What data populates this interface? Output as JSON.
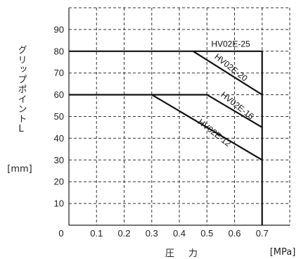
{
  "chart_data": {
    "type": "line",
    "title": "",
    "xlabel": "圧 力",
    "xunit": "[MPa]",
    "ylabel": "グリップポイントL",
    "yunit": "[mm]",
    "origin_label": "0",
    "xlim": [
      0,
      0.8
    ],
    "ylim": [
      0,
      100
    ],
    "grid": true,
    "x_ticks": [
      {
        "value": 0.1,
        "label": "0.1"
      },
      {
        "value": 0.2,
        "label": "0.2"
      },
      {
        "value": 0.3,
        "label": "0.3"
      },
      {
        "value": 0.4,
        "label": "0.4"
      },
      {
        "value": 0.5,
        "label": "0.5"
      },
      {
        "value": 0.6,
        "label": "0.6"
      },
      {
        "value": 0.7,
        "label": "0.7"
      }
    ],
    "y_ticks": [
      {
        "value": 10,
        "label": "10"
      },
      {
        "value": 20,
        "label": "20"
      },
      {
        "value": 30,
        "label": "30"
      },
      {
        "value": 40,
        "label": "40"
      },
      {
        "value": 50,
        "label": "50"
      },
      {
        "value": 60,
        "label": "60"
      },
      {
        "value": 70,
        "label": "70"
      },
      {
        "value": 80,
        "label": "80"
      },
      {
        "value": 90,
        "label": "90"
      }
    ],
    "series": [
      {
        "name": "HV02E-25",
        "x": [
          0,
          0.7,
          0.7
        ],
        "y": [
          80,
          80,
          0
        ]
      },
      {
        "name": "HV02E-20",
        "x": [
          0.45,
          0.7
        ],
        "y": [
          80,
          60
        ]
      },
      {
        "name": "HV02E-16",
        "x": [
          0,
          0.5,
          0.7
        ],
        "y": [
          60,
          60,
          45
        ]
      },
      {
        "name": "HV02E-12",
        "x": [
          0.3,
          0.7
        ],
        "y": [
          60,
          30
        ]
      }
    ],
    "series_labels": [
      {
        "series": "HV02E-25",
        "at": [
          0.586,
          82
        ],
        "angle": 0
      },
      {
        "series": "HV02E-20",
        "at": [
          0.581,
          71.5
        ],
        "angle": 38
      },
      {
        "series": "HV02E-16",
        "at": [
          0.604,
          54
        ],
        "angle": 38
      },
      {
        "series": "HV02E-12",
        "at": [
          0.521,
          41.5
        ],
        "angle": 38
      }
    ]
  }
}
